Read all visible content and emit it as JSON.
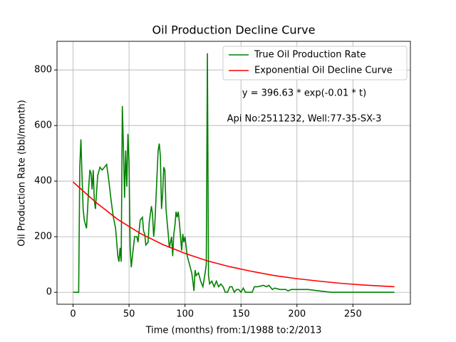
{
  "chart_data": {
    "type": "line",
    "title": "Oil Production Decline Curve",
    "xlabel": "Time (months) from:1/1988 to:2/2013",
    "ylabel": "Oil Production Rate (bbl/month)",
    "annotations": [
      "y = 396.63 * exp(-0.01 * t)",
      "Api No:2511232, Well:77-35-SX-3"
    ],
    "xlim": [
      -14.35,
      301.35
    ],
    "ylim": [
      -43,
      903
    ],
    "xticks": [
      0,
      50,
      100,
      150,
      200,
      250
    ],
    "yticks": [
      0,
      200,
      400,
      600,
      800
    ],
    "grid": true,
    "legend": "upper right",
    "series": [
      {
        "name": "True Oil Production Rate",
        "color": "#008000",
        "x": [
          0,
          5,
          6,
          7,
          8,
          9,
          10,
          12,
          13,
          14,
          15,
          16,
          17,
          18,
          19,
          20,
          22,
          24,
          26,
          28,
          30,
          32,
          34,
          36,
          38,
          40,
          41,
          42,
          43,
          44,
          45,
          46,
          47,
          48,
          49,
          50,
          51,
          52,
          53,
          55,
          57,
          58,
          60,
          62,
          63,
          64,
          65,
          67,
          68,
          70,
          71,
          72,
          73,
          75,
          76,
          77,
          78,
          79,
          80,
          81,
          82,
          83,
          85,
          86,
          87,
          88,
          89,
          90,
          91,
          92,
          93,
          94,
          95,
          96,
          97,
          98,
          99,
          100,
          102,
          104,
          106,
          107,
          108,
          109,
          110,
          112,
          114,
          116,
          118,
          119,
          120,
          121,
          122,
          124,
          126,
          128,
          130,
          132,
          134,
          136,
          138,
          140,
          142,
          144,
          146,
          148,
          150,
          152,
          154,
          160,
          162,
          165,
          170,
          173,
          175,
          178,
          180,
          185,
          190,
          192,
          195,
          200,
          210,
          220,
          230,
          240,
          250,
          287
        ],
        "values": [
          0,
          0,
          450,
          550,
          420,
          300,
          260,
          230,
          300,
          380,
          440,
          430,
          370,
          440,
          330,
          300,
          420,
          450,
          440,
          450,
          460,
          400,
          330,
          270,
          230,
          130,
          110,
          160,
          110,
          670,
          520,
          340,
          510,
          380,
          570,
          470,
          160,
          90,
          130,
          200,
          200,
          180,
          260,
          270,
          220,
          210,
          170,
          180,
          250,
          310,
          280,
          200,
          240,
          420,
          510,
          535,
          490,
          300,
          350,
          450,
          440,
          300,
          210,
          160,
          180,
          200,
          130,
          210,
          240,
          290,
          270,
          290,
          250,
          200,
          150,
          210,
          180,
          200,
          130,
          100,
          70,
          40,
          5,
          80,
          60,
          70,
          40,
          20,
          70,
          100,
          860,
          60,
          30,
          40,
          20,
          40,
          20,
          30,
          20,
          0,
          0,
          20,
          20,
          0,
          10,
          10,
          0,
          15,
          0,
          0,
          20,
          20,
          25,
          20,
          25,
          10,
          15,
          10,
          10,
          5,
          10,
          10,
          10,
          5,
          0,
          0,
          0,
          0
        ]
      },
      {
        "name": "Exponential Oil Decline Curve",
        "color": "#ff0000",
        "x": [
          0,
          20,
          40,
          60,
          80,
          100,
          120,
          140,
          160,
          180,
          200,
          220,
          240,
          260,
          287
        ],
        "values": [
          397,
          325,
          262,
          212,
          172,
          140,
          113,
          92,
          75,
          60,
          49,
          40,
          32,
          26,
          20
        ]
      }
    ]
  }
}
